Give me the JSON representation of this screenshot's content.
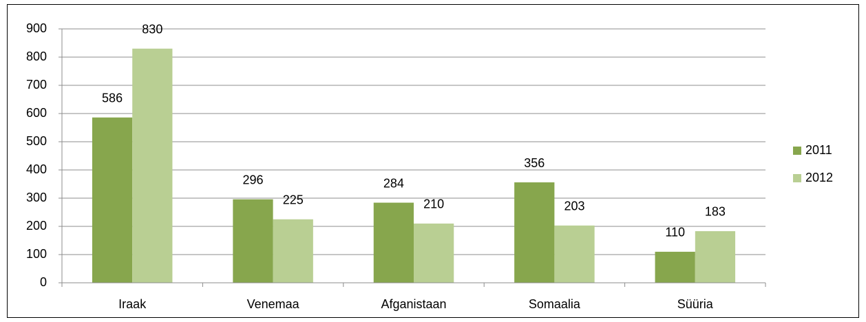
{
  "chart_data": {
    "type": "bar",
    "categories": [
      "Iraak",
      "Venemaa",
      "Afganistaan",
      "Somaalia",
      "Süüria"
    ],
    "series": [
      {
        "name": "2011",
        "color": "#87a64d",
        "values": [
          586,
          296,
          284,
          356,
          110
        ]
      },
      {
        "name": "2012",
        "color": "#b9cf93",
        "values": [
          830,
          225,
          210,
          203,
          183
        ]
      }
    ],
    "ylim": [
      0,
      900
    ],
    "yticks": [
      0,
      100,
      200,
      300,
      400,
      500,
      600,
      700,
      800,
      900
    ],
    "grid": true,
    "legend": "right"
  }
}
